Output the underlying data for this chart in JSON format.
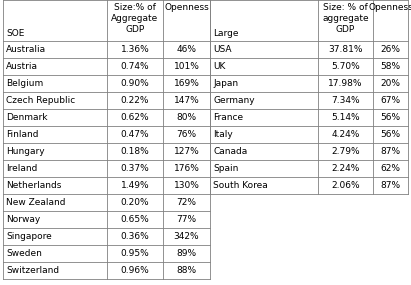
{
  "soe_rows": [
    [
      "Australia",
      "1.36%",
      "46%"
    ],
    [
      "Austria",
      "0.74%",
      "101%"
    ],
    [
      "Belgium",
      "0.90%",
      "169%"
    ],
    [
      "Czech Republic",
      "0.22%",
      "147%"
    ],
    [
      "Denmark",
      "0.62%",
      "80%"
    ],
    [
      "Finland",
      "0.47%",
      "76%"
    ],
    [
      "Hungary",
      "0.18%",
      "127%"
    ],
    [
      "Ireland",
      "0.37%",
      "176%"
    ],
    [
      "Netherlands",
      "1.49%",
      "130%"
    ],
    [
      "New Zealand",
      "0.20%",
      "72%"
    ],
    [
      "Norway",
      "0.65%",
      "77%"
    ],
    [
      "Singapore",
      "0.36%",
      "342%"
    ],
    [
      "Sweden",
      "0.95%",
      "89%"
    ],
    [
      "Switzerland",
      "0.96%",
      "88%"
    ]
  ],
  "large_rows": [
    [
      "USA",
      "37.81%",
      "26%"
    ],
    [
      "UK",
      "5.70%",
      "58%"
    ],
    [
      "Japan",
      "17.98%",
      "20%"
    ],
    [
      "Germany",
      "7.34%",
      "67%"
    ],
    [
      "France",
      "5.14%",
      "56%"
    ],
    [
      "Italy",
      "4.24%",
      "56%"
    ],
    [
      "Canada",
      "2.79%",
      "87%"
    ],
    [
      "Spain",
      "2.24%",
      "62%"
    ],
    [
      "South Korea",
      "2.06%",
      "87%"
    ]
  ],
  "line_color": "#808080",
  "text_color": "#000000",
  "bg_color": "#ffffff",
  "font_size": 6.5,
  "header_font_size": 6.5
}
